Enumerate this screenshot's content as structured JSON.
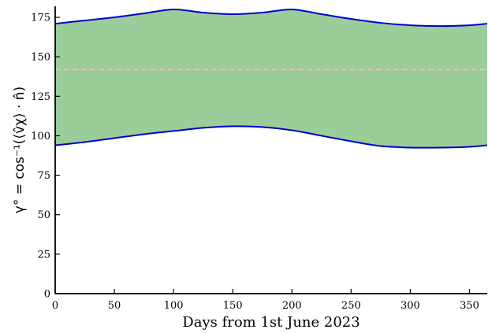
{
  "chart_data": {
    "type": "area",
    "xlabel": "Days from 1st June 2023",
    "ylabel": "γ° = cos⁻¹(⟨v̂χ⟩ · n̂)",
    "xlim": [
      0,
      365
    ],
    "ylim": [
      0,
      182
    ],
    "x_ticks": [
      0,
      50,
      100,
      150,
      200,
      250,
      300,
      350
    ],
    "y_ticks": [
      0,
      25,
      50,
      75,
      100,
      125,
      150,
      175
    ],
    "grid": false,
    "colors": {
      "fill": "#9acd9a",
      "bound_line": "#0000cc",
      "mean_line": "#f4b8b8",
      "axis": "#000000"
    },
    "series": [
      {
        "role": "upper",
        "x": [
          0,
          25,
          50,
          75,
          100,
          125,
          150,
          175,
          200,
          225,
          250,
          275,
          300,
          325,
          350,
          365
        ],
        "y": [
          171,
          173,
          175,
          177.5,
          180,
          178,
          177,
          178,
          180,
          177,
          174,
          171.5,
          170,
          169.5,
          170,
          171
        ]
      },
      {
        "role": "lower",
        "x": [
          0,
          25,
          50,
          75,
          100,
          125,
          150,
          175,
          200,
          225,
          250,
          275,
          300,
          325,
          350,
          365
        ],
        "y": [
          94,
          96,
          98.5,
          101,
          103,
          105,
          106,
          105.5,
          103.5,
          100,
          96.5,
          93.5,
          92.5,
          92.5,
          93,
          94
        ]
      },
      {
        "role": "mean",
        "x": [
          0,
          365
        ],
        "y": [
          142,
          142
        ]
      }
    ]
  }
}
